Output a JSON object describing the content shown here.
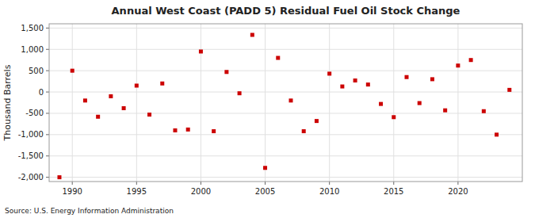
{
  "chart_data": {
    "type": "scatter",
    "title": "Annual West Coast (PADD 5) Residual Fuel Oil Stock Change",
    "y_label": "Thousand Barrels",
    "annotations": [
      "Source: U.S. Energy Information Administration"
    ],
    "color": "#cc0000",
    "marker": "square",
    "grid": true,
    "x": [
      1989,
      1990,
      1991,
      1992,
      1993,
      1994,
      1995,
      1996,
      1997,
      1998,
      1999,
      2000,
      2001,
      2002,
      2003,
      2004,
      2005,
      2006,
      2007,
      2008,
      2009,
      2010,
      2011,
      2012,
      2013,
      2014,
      2015,
      2016,
      2017,
      2018,
      2019,
      2020,
      2021,
      2022,
      2023,
      2024
    ],
    "values": [
      -2000,
      500,
      -200,
      -580,
      -100,
      -380,
      150,
      -530,
      200,
      -900,
      -880,
      950,
      -920,
      470,
      -30,
      1340,
      -1780,
      800,
      -200,
      -920,
      -680,
      430,
      130,
      270,
      175,
      -280,
      -590,
      350,
      -260,
      300,
      -430,
      620,
      750,
      -450,
      -1000,
      50
    ],
    "xlim": [
      1988.2,
      2025.0
    ],
    "xticks": [
      1990,
      1995,
      2000,
      2005,
      2010,
      2015,
      2020
    ],
    "ylim": [
      -2100,
      1600
    ],
    "yticks": [
      {
        "value": -2000,
        "label": "-2,000"
      },
      {
        "value": -1500,
        "label": "-1,500"
      },
      {
        "value": -1000,
        "label": "-1,000"
      },
      -500,
      0,
      500,
      {
        "value": 1000,
        "label": "1,000"
      },
      {
        "value": 1500,
        "label": "1,500"
      }
    ]
  }
}
